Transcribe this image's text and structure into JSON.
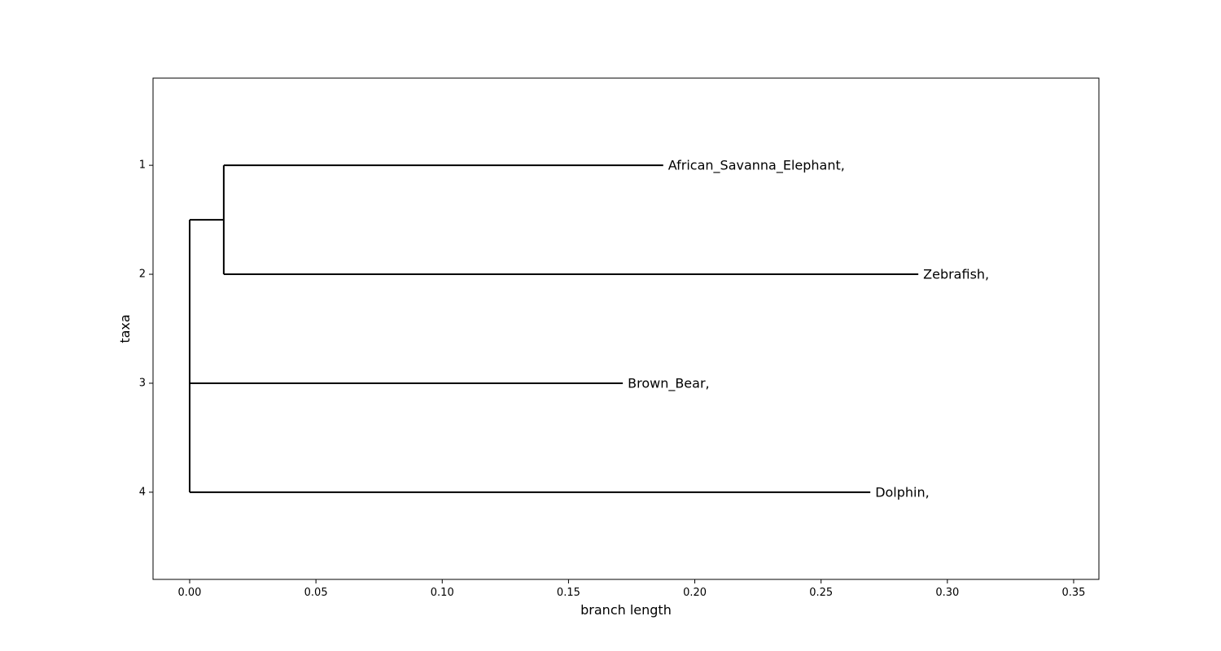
{
  "chart_data": {
    "type": "dendrogram",
    "xlabel": "branch length",
    "ylabel": "taxa",
    "xlim": [
      -0.0145,
      0.36
    ],
    "ylim": [
      4.8,
      0.2
    ],
    "x_ticks": [
      0.0,
      0.05,
      0.1,
      0.15,
      0.2,
      0.25,
      0.3,
      0.35
    ],
    "x_tick_labels": [
      "0.00",
      "0.05",
      "0.10",
      "0.15",
      "0.20",
      "0.25",
      "0.30",
      "0.35"
    ],
    "y_ticks": [
      1,
      2,
      3,
      4
    ],
    "y_tick_labels": [
      "1",
      "2",
      "3",
      "4"
    ],
    "nodes": [
      {
        "id": "root",
        "x": 0.0,
        "y": 2.75
      },
      {
        "id": "clade1",
        "x": 0.0135,
        "y": 1.5
      }
    ],
    "leaves": [
      {
        "name": "African_Savanna_Elephant,",
        "parent": "clade1",
        "x": 0.1875,
        "y": 1
      },
      {
        "name": "Zebrafish,",
        "parent": "clade1",
        "x": 0.2885,
        "y": 2
      },
      {
        "name": "Brown_Bear,",
        "parent": "root",
        "x": 0.1715,
        "y": 3
      },
      {
        "name": "Dolphin,",
        "parent": "root",
        "x": 0.2695,
        "y": 4
      }
    ],
    "edges": [
      {
        "from": "root",
        "to": "clade1"
      }
    ]
  }
}
